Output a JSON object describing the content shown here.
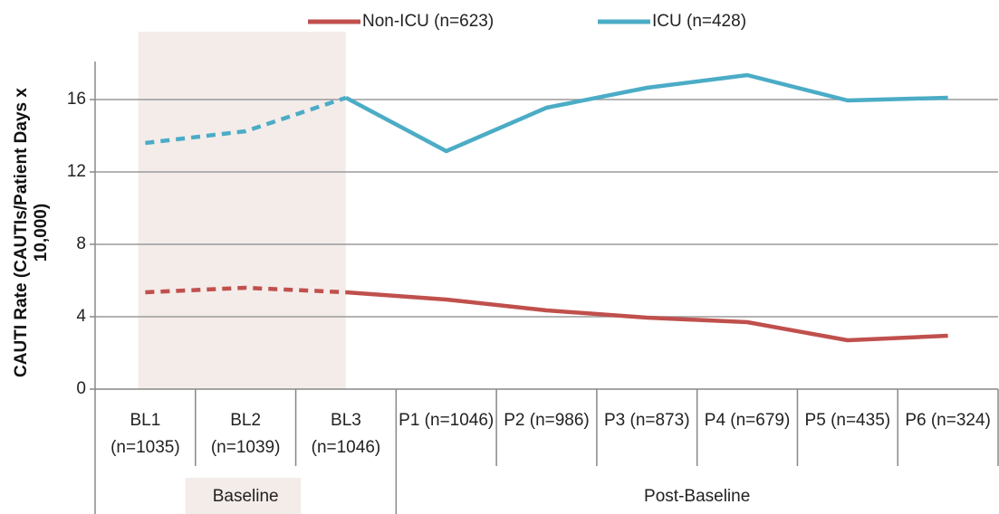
{
  "chart_data": {
    "type": "line",
    "y_label": "CAUTI Rate (CAUTIs/Patient Days x 10,000)",
    "categories": [
      "BL1 (n=1035)",
      "BL2 (n=1039)",
      "BL3 (n=1046)",
      "P1 (n=1046)",
      "P2 (n=986)",
      "P3 (n=873)",
      "P4 (n=679)",
      "P5 (n=435)",
      "P6 (n=324)"
    ],
    "groups": [
      "Baseline",
      "Post-Baseline"
    ],
    "series": [
      {
        "name": "Non-ICU (n=623)",
        "color": "#c0504d",
        "values": [
          5.35,
          5.6,
          5.35,
          4.95,
          4.35,
          3.95,
          3.7,
          2.7,
          2.95
        ]
      },
      {
        "name": "ICU (n=428)",
        "color": "#4bacc6",
        "values": [
          13.6,
          14.25,
          16.1,
          13.15,
          15.55,
          16.65,
          17.35,
          15.95,
          16.1
        ]
      }
    ],
    "ylim": [
      0,
      18
    ],
    "yticks": [
      0,
      4,
      8,
      12,
      16
    ],
    "grid": true,
    "legend": "top"
  }
}
